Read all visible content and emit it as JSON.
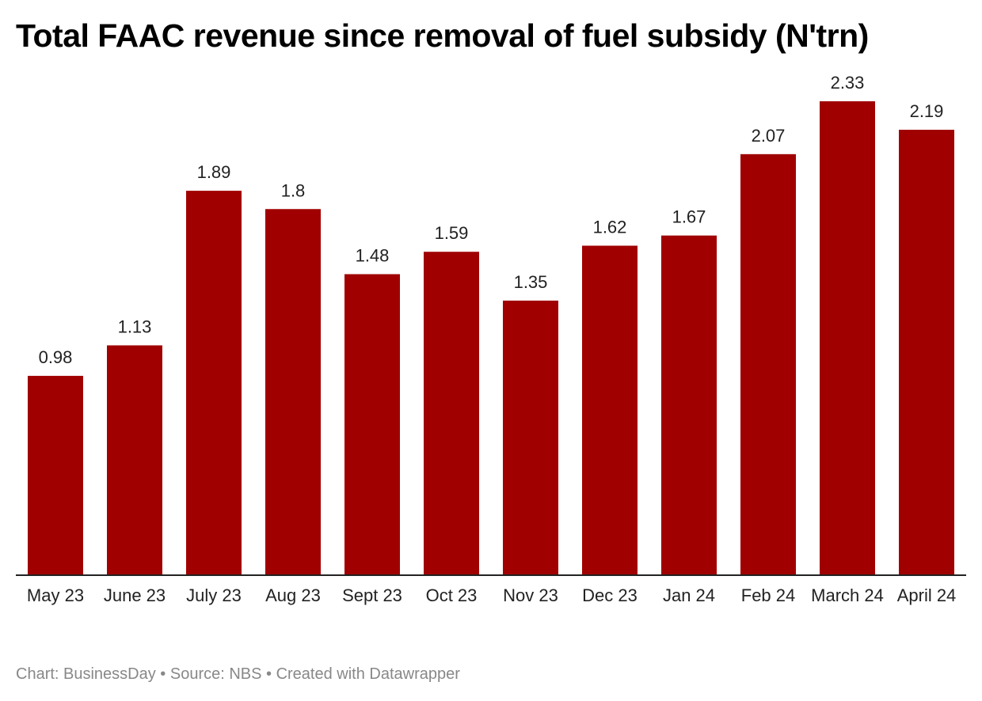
{
  "chart_data": {
    "type": "bar",
    "title": "Total FAAC revenue since removal of fuel subsidy (N'trn)",
    "categories": [
      "May 23",
      "June 23",
      "July 23",
      "Aug 23",
      "Sept 23",
      "Oct 23",
      "Nov 23",
      "Dec 23",
      "Jan 24",
      "Feb 24",
      "March 24",
      "April 24"
    ],
    "values": [
      0.98,
      1.13,
      1.89,
      1.8,
      1.48,
      1.59,
      1.35,
      1.62,
      1.67,
      2.07,
      2.33,
      2.19
    ],
    "value_labels": [
      "0.98",
      "1.13",
      "1.89",
      "1.8",
      "1.48",
      "1.59",
      "1.35",
      "1.62",
      "1.67",
      "2.07",
      "2.33",
      "2.19"
    ],
    "xlabel": "",
    "ylabel": "",
    "ylim": [
      0,
      2.33
    ],
    "grid": false,
    "legend": "none",
    "bar_color": "#a00000",
    "footer": "Chart: BusinessDay • Source: NBS • Created with Datawrapper"
  }
}
